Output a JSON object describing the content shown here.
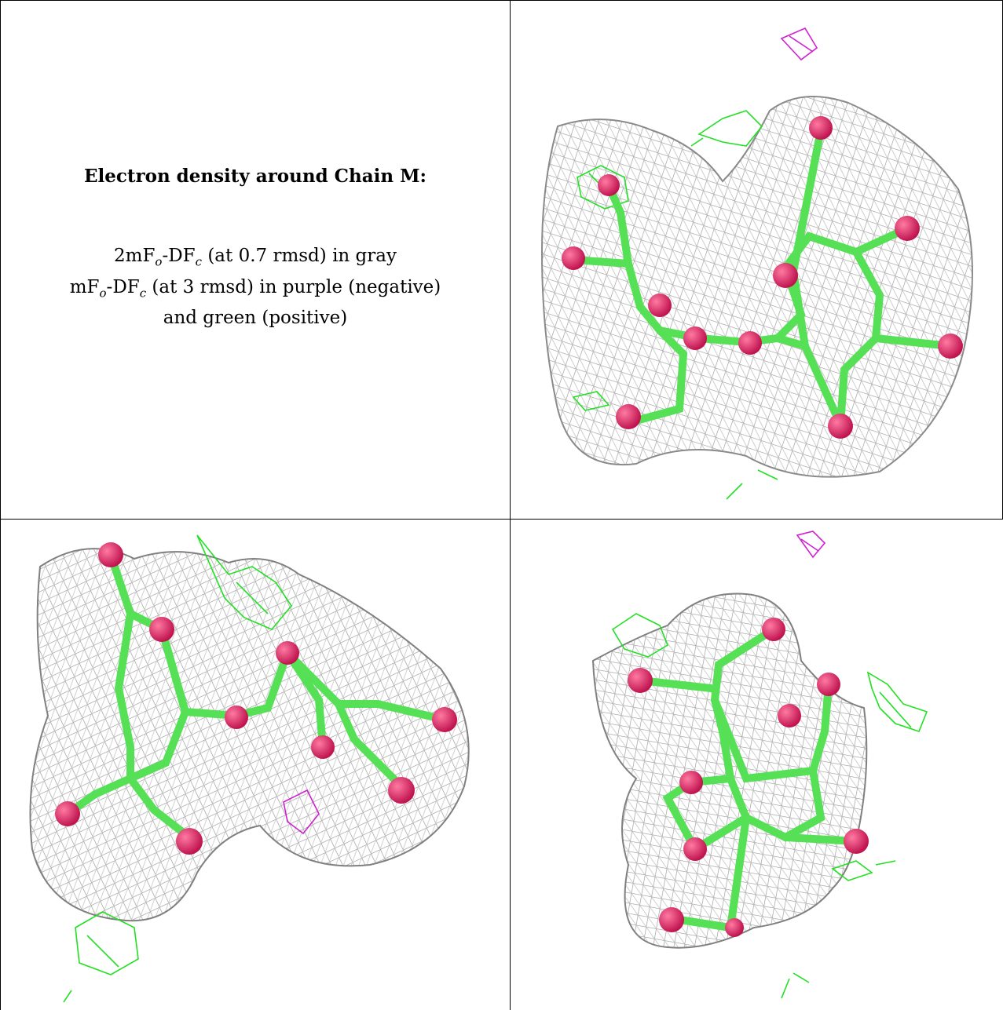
{
  "caption": {
    "title": "Electron density around Chain M:",
    "line1_pre": "2mF",
    "line1_sub1": "o",
    "line1_mid": "-DF",
    "line1_sub2": "c",
    "line1_post": " (at 0.7 rmsd) in gray",
    "line2_pre": "mF",
    "line2_sub1": "o",
    "line2_mid": "-DF",
    "line2_sub2": "c",
    "line2_post": " (at 3 rmsd) in purple (negative)",
    "line3": "and green (positive)"
  },
  "colors": {
    "mesh_2fofc": "#9a9a9a",
    "mesh_positive": "#22e022",
    "mesh_negative": "#d020d0",
    "carbon_bonds": "#55e055",
    "oxygen_atoms": "#e0306a",
    "grid_lines": "#000000"
  },
  "panels": [
    {
      "name": "view-1"
    },
    {
      "name": "view-2"
    },
    {
      "name": "view-3"
    }
  ]
}
